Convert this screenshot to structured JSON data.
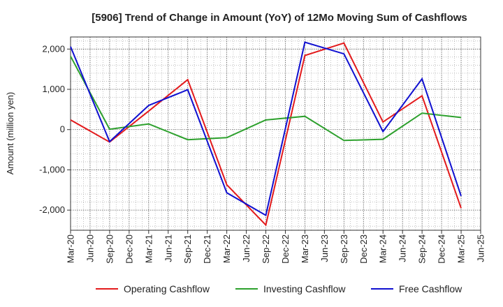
{
  "chart_data": {
    "type": "line",
    "title": "[5906]  Trend of Change in Amount (YoY) of 12Mo Moving Sum of Cashflows",
    "xlabel": "",
    "ylabel": "Amount (million yen)",
    "ylim": [
      -2500,
      2300
    ],
    "yticks": [
      2000,
      1000,
      0,
      -1000,
      -2000
    ],
    "ytick_labels": [
      "2,000",
      "1,000",
      "0",
      "-1,000",
      "-2,000"
    ],
    "categories": [
      "Mar-20",
      "Jun-20",
      "Sep-20",
      "Dec-20",
      "Mar-21",
      "Jun-21",
      "Sep-21",
      "Dec-21",
      "Mar-22",
      "Jun-22",
      "Sep-22",
      "Dec-22",
      "Mar-23",
      "Jun-23",
      "Sep-23",
      "Dec-23",
      "Mar-24",
      "Jun-24",
      "Sep-24",
      "Dec-24",
      "Mar-25",
      "Jun-25"
    ],
    "grid": true,
    "legend_position": "bottom",
    "series": [
      {
        "name": "Operating Cashflow",
        "color": "#e31a1c",
        "points": [
          [
            "Mar-20",
            240
          ],
          [
            "Sep-20",
            -310
          ],
          [
            "Mar-21",
            460
          ],
          [
            "Sep-21",
            1240
          ],
          [
            "Mar-22",
            -1370
          ],
          [
            "Sep-22",
            -2370
          ],
          [
            "Mar-23",
            1840
          ],
          [
            "Sep-23",
            2150
          ],
          [
            "Mar-24",
            190
          ],
          [
            "Sep-24",
            840
          ],
          [
            "Mar-25",
            -1950
          ]
        ]
      },
      {
        "name": "Investing Cashflow",
        "color": "#2ca02c",
        "points": [
          [
            "Mar-20",
            1820
          ],
          [
            "Sep-20",
            10
          ],
          [
            "Mar-21",
            140
          ],
          [
            "Sep-21",
            -250
          ],
          [
            "Mar-22",
            -200
          ],
          [
            "Sep-22",
            240
          ],
          [
            "Mar-23",
            330
          ],
          [
            "Sep-23",
            -270
          ],
          [
            "Mar-24",
            -240
          ],
          [
            "Sep-24",
            410
          ],
          [
            "Mar-25",
            300
          ]
        ]
      },
      {
        "name": "Free Cashflow",
        "color": "#1010d0",
        "points": [
          [
            "Mar-20",
            2060
          ],
          [
            "Sep-20",
            -300
          ],
          [
            "Mar-21",
            600
          ],
          [
            "Sep-21",
            990
          ],
          [
            "Mar-22",
            -1570
          ],
          [
            "Sep-22",
            -2130
          ],
          [
            "Mar-23",
            2170
          ],
          [
            "Sep-23",
            1880
          ],
          [
            "Mar-24",
            -50
          ],
          [
            "Sep-24",
            1260
          ],
          [
            "Mar-25",
            -1650
          ]
        ]
      }
    ]
  }
}
